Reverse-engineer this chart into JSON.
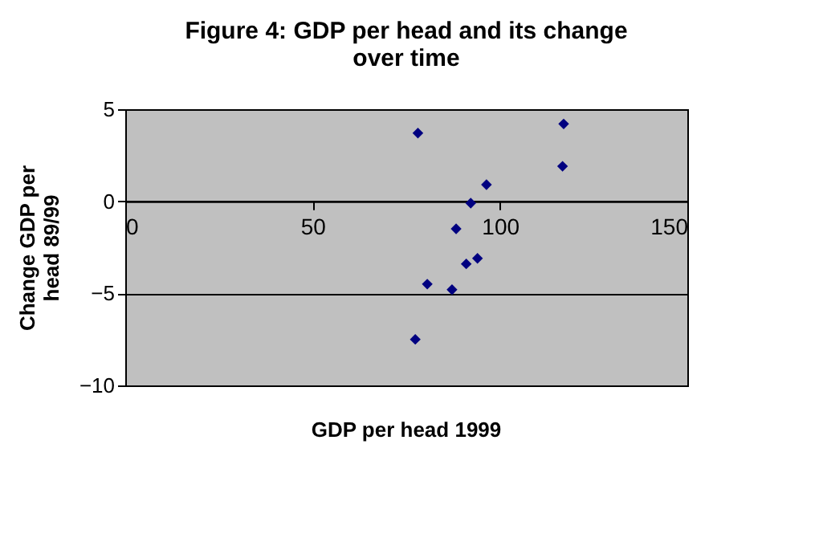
{
  "chart_data": {
    "type": "scatter",
    "title": "Figure 4:  GDP per head and its change over time",
    "xlabel": "GDP per head 1999",
    "ylabel": "Change GDP per head 89/99",
    "x": [
      78.1,
      117,
      116.7,
      96.4,
      92.2,
      88.3,
      94,
      91,
      80.6,
      87.2,
      77.4
    ],
    "series": [
      {
        "color": "#000080",
        "values": [
          3.7,
          4.2,
          1.9,
          0.9,
          -0.1,
          -1.5,
          -3.1,
          -3.4,
          -4.5,
          -4.8,
          -7.5
        ]
      }
    ],
    "xlim": [
      0,
      150
    ],
    "xticks": [
      0,
      50,
      100,
      150
    ],
    "ylim": [
      -10,
      5
    ],
    "yticks": [
      -10,
      -5,
      0,
      5
    ],
    "grid": "y",
    "marker": "diamond",
    "legend": false
  }
}
